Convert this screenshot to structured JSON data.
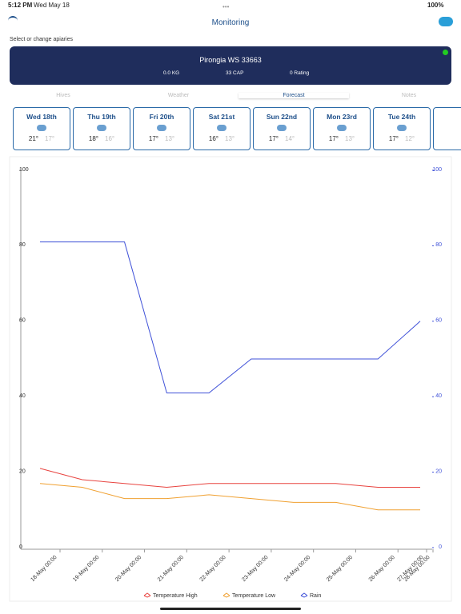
{
  "status_bar": {
    "time": "5:12 PM",
    "date": "Wed May 18",
    "battery": "100%"
  },
  "header": {
    "title": "Monitoring",
    "subtitle": "Select or change apiaries"
  },
  "apiary": {
    "name": "Pirongia WS 33663",
    "weight": "0.0 KG",
    "capacity": "33 CAP",
    "rating": "0 Rating"
  },
  "tabs": [
    "Hives",
    "Weather",
    "Forecast",
    "Notes"
  ],
  "forecast": [
    {
      "day": "Wed 18th",
      "high": "21°",
      "low": "17°"
    },
    {
      "day": "Thu 19th",
      "high": "18°",
      "low": "16°"
    },
    {
      "day": "Fri 20th",
      "high": "17°",
      "low": "13°"
    },
    {
      "day": "Sat 21st",
      "high": "16°",
      "low": "13°"
    },
    {
      "day": "Sun 22nd",
      "high": "17°",
      "low": "14°"
    },
    {
      "day": "Mon 23rd",
      "high": "17°",
      "low": "13°"
    },
    {
      "day": "Tue 24th",
      "high": "17°",
      "low": "12°"
    }
  ],
  "chart_data": {
    "type": "line",
    "categories": [
      "18-May 00:00",
      "19-May 00:00",
      "20-May 00:00",
      "21-May 00:00",
      "22-May 00:00",
      "23-May 00:00",
      "24-May 00:00",
      "25-May 00:00",
      "26-May 00:00",
      "27-May 00:00",
      "28-May 00:00"
    ],
    "series": [
      {
        "name": "Temperature High",
        "color": "#e8433f",
        "values": [
          21,
          18,
          17,
          16,
          17,
          17,
          17,
          17,
          16,
          16,
          null
        ]
      },
      {
        "name": "Temperature Low",
        "color": "#f0a030",
        "values": [
          17,
          16,
          13,
          13,
          14,
          13,
          12,
          12,
          10,
          10,
          null
        ]
      },
      {
        "name": "Rain",
        "color": "#3f51d8",
        "axis": "y2",
        "values": [
          81,
          81,
          81,
          41,
          41,
          50,
          50,
          50,
          50,
          60,
          null
        ]
      }
    ],
    "ylim": [
      0,
      100
    ],
    "yticks": [
      0,
      20,
      40,
      60,
      80,
      100
    ],
    "y2lim": [
      0,
      100
    ],
    "y2ticks": [
      0,
      20,
      40,
      60,
      80,
      100
    ],
    "grid": false
  }
}
